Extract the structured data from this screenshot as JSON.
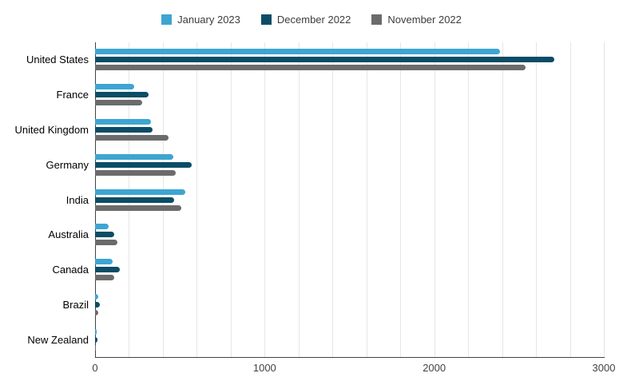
{
  "chart_data": {
    "type": "bar",
    "orientation": "horizontal",
    "title": "",
    "xlabel": "",
    "ylabel": "",
    "xlim": [
      0,
      3000
    ],
    "x_ticks": [
      0,
      1000,
      2000,
      3000
    ],
    "x_tick_labels": [
      "0",
      "1000",
      "2000",
      "3000"
    ],
    "minor_grid_step": 200,
    "grid": true,
    "legend_position": "top",
    "categories": [
      "United States",
      "France",
      "United Kingdom",
      "Germany",
      "India",
      "Australia",
      "Canada",
      "Brazil",
      "New Zealand"
    ],
    "series": [
      {
        "name": "January 2023",
        "color": "#3DA5D2",
        "values": [
          2390,
          230,
          330,
          460,
          530,
          80,
          105,
          20,
          10
        ]
      },
      {
        "name": "December 2022",
        "color": "#0B4D66",
        "values": [
          2710,
          315,
          340,
          570,
          465,
          115,
          145,
          30,
          15
        ]
      },
      {
        "name": "November 2022",
        "color": "#6B6B6B",
        "values": [
          2540,
          280,
          435,
          475,
          510,
          130,
          115,
          20,
          5
        ]
      }
    ],
    "colors": {
      "background": "#ffffff",
      "gridline": "#e6e6e6",
      "axis": "#424242",
      "tick_label": "#424242",
      "category_label": "#000000",
      "legend_text": "#3c3c3c"
    }
  }
}
